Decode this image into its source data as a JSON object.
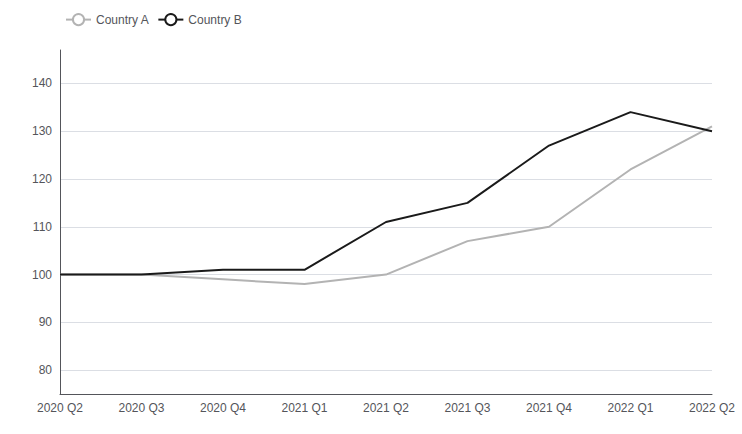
{
  "chart_data": {
    "type": "line",
    "categories": [
      "2020 Q2",
      "2020 Q3",
      "2020 Q4",
      "2021 Q1",
      "2021 Q2",
      "2021 Q3",
      "2021 Q4",
      "2022 Q1",
      "2022 Q2"
    ],
    "series": [
      {
        "name": "Country A",
        "color": "#b3b3b3",
        "values": [
          100,
          100,
          99,
          98,
          100,
          107,
          110,
          122,
          131
        ]
      },
      {
        "name": "Country B",
        "color": "#1a1a1a",
        "values": [
          100,
          100,
          101,
          101,
          111,
          115,
          127,
          134,
          130
        ]
      }
    ],
    "ylim": [
      75,
      147
    ],
    "yticks": [
      80,
      90,
      100,
      110,
      120,
      130,
      140
    ],
    "grid": true,
    "legend": "upper left"
  }
}
